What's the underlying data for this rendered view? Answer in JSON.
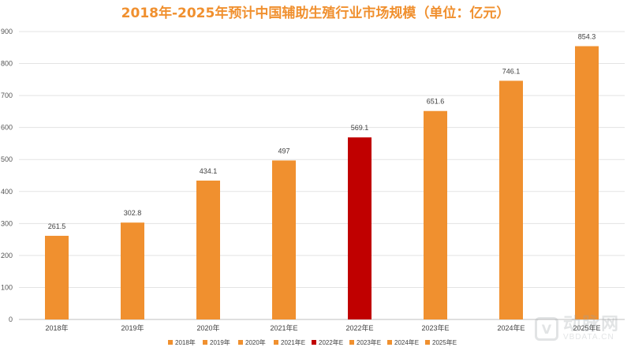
{
  "chart_data": {
    "type": "bar",
    "title": "2018年-2025年预计中国辅助生殖行业市场规模（单位：亿元）",
    "categories": [
      "2018年",
      "2019年",
      "2020年",
      "2021年E",
      "2022年E",
      "2023年E",
      "2024年E",
      "2025年E"
    ],
    "values": [
      261.5,
      302.8,
      434.1,
      497,
      569.1,
      651.6,
      746.1,
      854.3
    ],
    "value_labels": [
      "261.5",
      "302.8",
      "434.1",
      "497",
      "569.1",
      "651.6",
      "746.1",
      "854.3"
    ],
    "colors": [
      "#F0902F",
      "#F0902F",
      "#F0902F",
      "#F0902F",
      "#C00000",
      "#F0902F",
      "#F0902F",
      "#F0902F"
    ],
    "ylim": [
      0,
      900
    ],
    "yticks": [
      0,
      100,
      200,
      300,
      400,
      500,
      600,
      700,
      800,
      900
    ],
    "grid": true,
    "legend_position": "bottom",
    "title_color": "#F0902F",
    "xlabel": "",
    "ylabel": ""
  },
  "watermark": {
    "logo_letter": "V",
    "text_cn": "动脉网",
    "text_en": "VBDATA.CN"
  }
}
